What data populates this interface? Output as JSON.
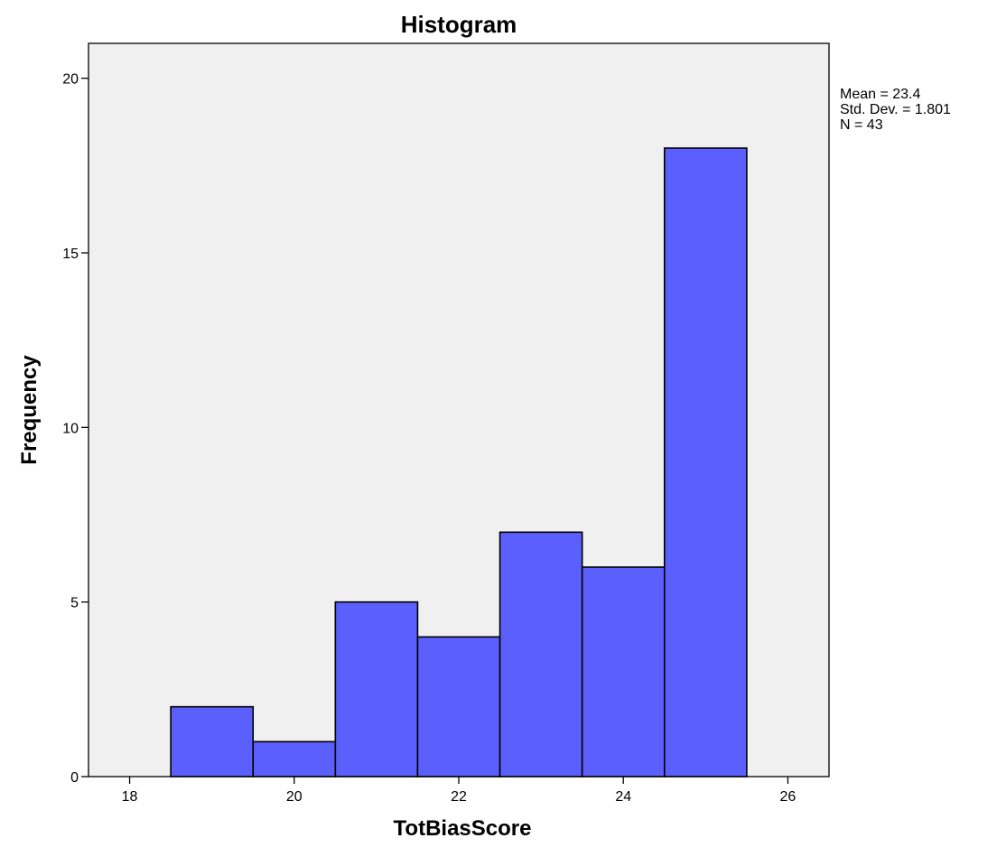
{
  "chart_data": {
    "type": "bar",
    "title": "Histogram",
    "xlabel": "TotBiasScore",
    "ylabel": "Frequency",
    "bins": [
      {
        "start": 18.5,
        "end": 19.5,
        "count": 2
      },
      {
        "start": 19.5,
        "end": 20.5,
        "count": 1
      },
      {
        "start": 20.5,
        "end": 21.5,
        "count": 5
      },
      {
        "start": 21.5,
        "end": 22.5,
        "count": 4
      },
      {
        "start": 22.5,
        "end": 23.5,
        "count": 7
      },
      {
        "start": 23.5,
        "end": 24.5,
        "count": 6
      },
      {
        "start": 24.5,
        "end": 25.5,
        "count": 18
      }
    ],
    "xlim": [
      17.5,
      26.5
    ],
    "ylim": [
      0,
      21
    ],
    "x_ticks": [
      18,
      20,
      22,
      24,
      26
    ],
    "y_ticks": [
      0,
      5,
      10,
      15,
      20
    ],
    "grid": false,
    "legend": "none",
    "stats": [
      "Mean = 23.4",
      "Std. Dev. = 1.801",
      "N = 43"
    ],
    "colors": {
      "bar_fill": "#5b5ffc",
      "bar_stroke": "#000000",
      "plot_background": "#f0f0f0",
      "frame": "#000000"
    }
  }
}
